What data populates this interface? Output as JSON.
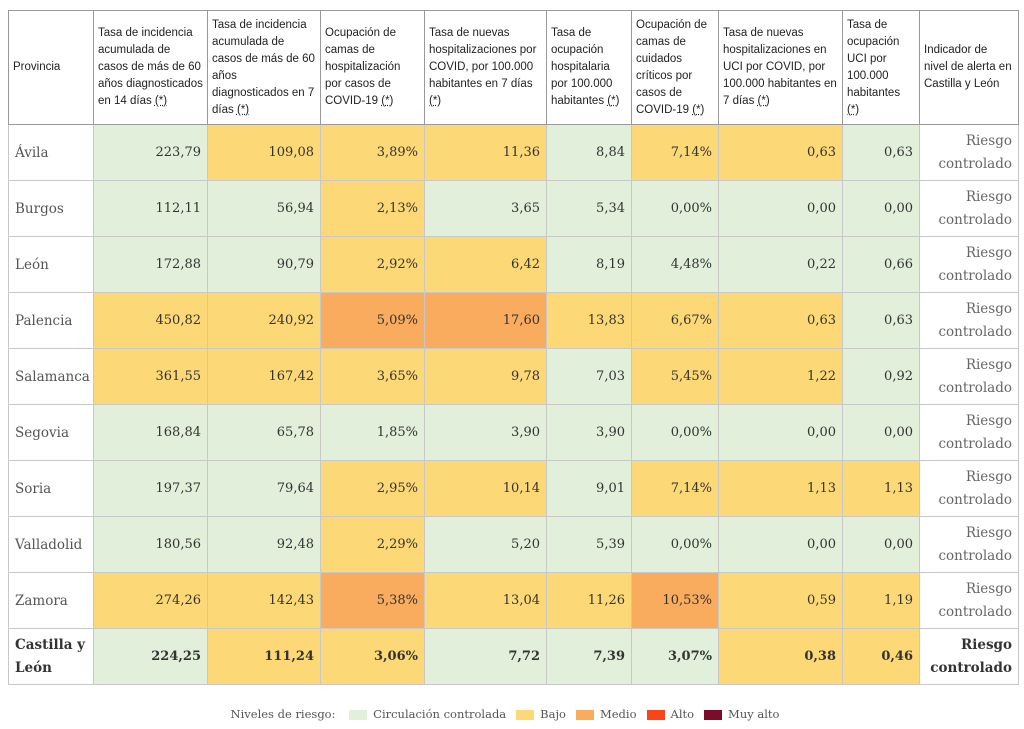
{
  "table": {
    "headers": [
      {
        "text": "Provincia",
        "ast": ""
      },
      {
        "text": "Tasa de incidencia acumulada de casos de más de 60 años diagnosticados en 14 días ",
        "ast": "(*)"
      },
      {
        "text": "Tasa de incidencia acumulada de casos de más de 60 años diagnosticados en 7 días ",
        "ast": "(*)"
      },
      {
        "text": "Ocupación de camas de hospitalización por casos de COVID-19 ",
        "ast": "(*)"
      },
      {
        "text": "Tasa de nuevas hospitalizaciones por COVID, por 100.000 habitantes en 7 días ",
        "ast": "(*)"
      },
      {
        "text": "Tasa de ocupación hospitalaria por 100.000 habitantes ",
        "ast": "(*)"
      },
      {
        "text": "Ocupación de camas de cuidados críticos por casos de COVID-19 ",
        "ast": "(*)"
      },
      {
        "text": "Tasa de nuevas hospitalizaciones en UCI por COVID, por 100.000 habitantes en 7 días ",
        "ast": "(*)"
      },
      {
        "text": "Tasa de ocupación UCI por 100.000 habitantes ",
        "ast": "(*)"
      },
      {
        "text": "Indicador de nivel de alerta en Castilla y León",
        "ast": ""
      }
    ],
    "rows": [
      {
        "province": "Ávila",
        "values": [
          "223,79",
          "109,08",
          "3,89%",
          "11,36",
          "8,84",
          "7,14%",
          "0,63",
          "0,63"
        ],
        "levels": [
          "g",
          "y",
          "y",
          "y",
          "g",
          "y",
          "y",
          "g"
        ],
        "alert": "Riesgo controlado"
      },
      {
        "province": "Burgos",
        "values": [
          "112,11",
          "56,94",
          "2,13%",
          "3,65",
          "5,34",
          "0,00%",
          "0,00",
          "0,00"
        ],
        "levels": [
          "g",
          "g",
          "y",
          "g",
          "g",
          "g",
          "g",
          "g"
        ],
        "alert": "Riesgo controlado"
      },
      {
        "province": "León",
        "values": [
          "172,88",
          "90,79",
          "2,92%",
          "6,42",
          "8,19",
          "4,48%",
          "0,22",
          "0,66"
        ],
        "levels": [
          "g",
          "g",
          "y",
          "y",
          "g",
          "g",
          "g",
          "g"
        ],
        "alert": "Riesgo controlado"
      },
      {
        "province": "Palencia",
        "values": [
          "450,82",
          "240,92",
          "5,09%",
          "17,60",
          "13,83",
          "6,67%",
          "0,63",
          "0,63"
        ],
        "levels": [
          "y",
          "y",
          "o",
          "o",
          "y",
          "y",
          "y",
          "g"
        ],
        "alert": "Riesgo controlado"
      },
      {
        "province": "Salamanca",
        "values": [
          "361,55",
          "167,42",
          "3,65%",
          "9,78",
          "7,03",
          "5,45%",
          "1,22",
          "0,92"
        ],
        "levels": [
          "y",
          "y",
          "y",
          "y",
          "g",
          "y",
          "y",
          "g"
        ],
        "alert": "Riesgo controlado"
      },
      {
        "province": "Segovia",
        "values": [
          "168,84",
          "65,78",
          "1,85%",
          "3,90",
          "3,90",
          "0,00%",
          "0,00",
          "0,00"
        ],
        "levels": [
          "g",
          "g",
          "g",
          "g",
          "g",
          "g",
          "g",
          "g"
        ],
        "alert": "Riesgo controlado"
      },
      {
        "province": "Soria",
        "values": [
          "197,37",
          "79,64",
          "2,95%",
          "10,14",
          "9,01",
          "7,14%",
          "1,13",
          "1,13"
        ],
        "levels": [
          "g",
          "g",
          "y",
          "y",
          "g",
          "y",
          "y",
          "y"
        ],
        "alert": "Riesgo controlado"
      },
      {
        "province": "Valladolid",
        "values": [
          "180,56",
          "92,48",
          "2,29%",
          "5,20",
          "5,39",
          "0,00%",
          "0,00",
          "0,00"
        ],
        "levels": [
          "g",
          "g",
          "y",
          "g",
          "g",
          "g",
          "g",
          "g"
        ],
        "alert": "Riesgo controlado"
      },
      {
        "province": "Zamora",
        "values": [
          "274,26",
          "142,43",
          "5,38%",
          "13,04",
          "11,26",
          "10,53%",
          "0,59",
          "1,19"
        ],
        "levels": [
          "y",
          "y",
          "o",
          "y",
          "y",
          "o",
          "y",
          "y"
        ],
        "alert": "Riesgo controlado"
      },
      {
        "province": "Castilla y León",
        "values": [
          "224,25",
          "111,24",
          "3,06%",
          "7,72",
          "7,39",
          "3,07%",
          "0,38",
          "0,46"
        ],
        "levels": [
          "g",
          "y",
          "y",
          "g",
          "g",
          "g",
          "y",
          "y"
        ],
        "alert": "Riesgo controlado",
        "total": true
      }
    ]
  },
  "legend": {
    "title": "Niveles de riesgo:",
    "items": [
      {
        "label": "Circulación controlada",
        "color": "#e2efdb"
      },
      {
        "label": "Bajo",
        "color": "#fcd976"
      },
      {
        "label": "Medio",
        "color": "#f9ab5e"
      },
      {
        "label": "Alto",
        "color": "#fa4419"
      },
      {
        "label": "Muy alto",
        "color": "#7b0c2a"
      }
    ]
  }
}
